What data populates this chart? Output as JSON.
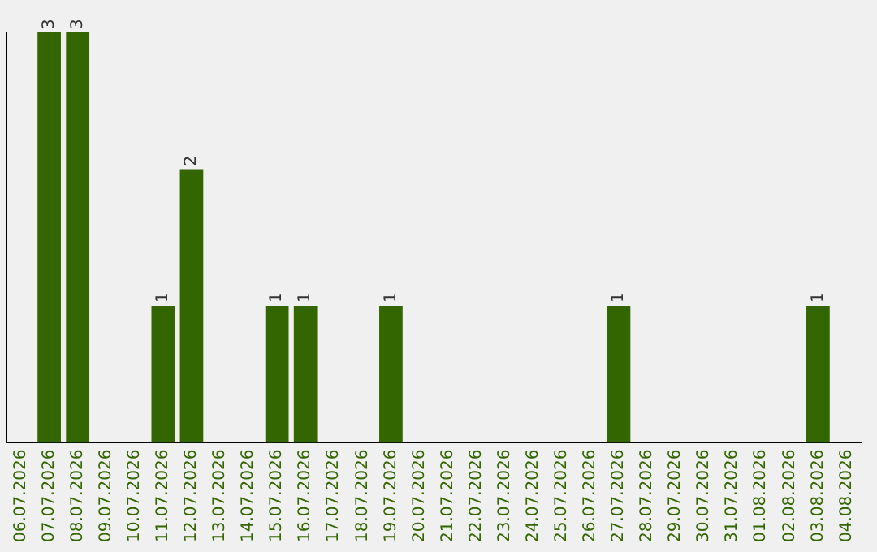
{
  "chart_data": {
    "type": "bar",
    "categories": [
      "06.07.2026",
      "07.07.2026",
      "08.07.2026",
      "09.07.2026",
      "10.07.2026",
      "11.07.2026",
      "12.07.2026",
      "13.07.2026",
      "14.07.2026",
      "15.07.2026",
      "16.07.2026",
      "17.07.2026",
      "18.07.2026",
      "19.07.2026",
      "20.07.2026",
      "21.07.2026",
      "22.07.2026",
      "23.07.2026",
      "24.07.2026",
      "25.07.2026",
      "26.07.2026",
      "27.07.2026",
      "28.07.2026",
      "29.07.2026",
      "30.07.2026",
      "31.07.2026",
      "01.08.2026",
      "02.08.2026",
      "03.08.2026",
      "04.08.2026"
    ],
    "values": [
      0,
      3,
      3,
      0,
      0,
      1,
      2,
      0,
      0,
      1,
      1,
      0,
      0,
      1,
      0,
      0,
      0,
      0,
      0,
      0,
      0,
      1,
      0,
      0,
      0,
      0,
      0,
      0,
      1,
      0
    ],
    "value_labels": [
      null,
      "3",
      "3",
      null,
      null,
      "1",
      "2",
      null,
      null,
      "1",
      "1",
      null,
      null,
      "1",
      null,
      null,
      null,
      null,
      null,
      null,
      null,
      "1",
      null,
      null,
      null,
      null,
      null,
      null,
      "1",
      null
    ],
    "color": "#336600",
    "ylim": [
      0,
      3
    ],
    "grid": false,
    "legend": false,
    "tick_labels": "x"
  }
}
